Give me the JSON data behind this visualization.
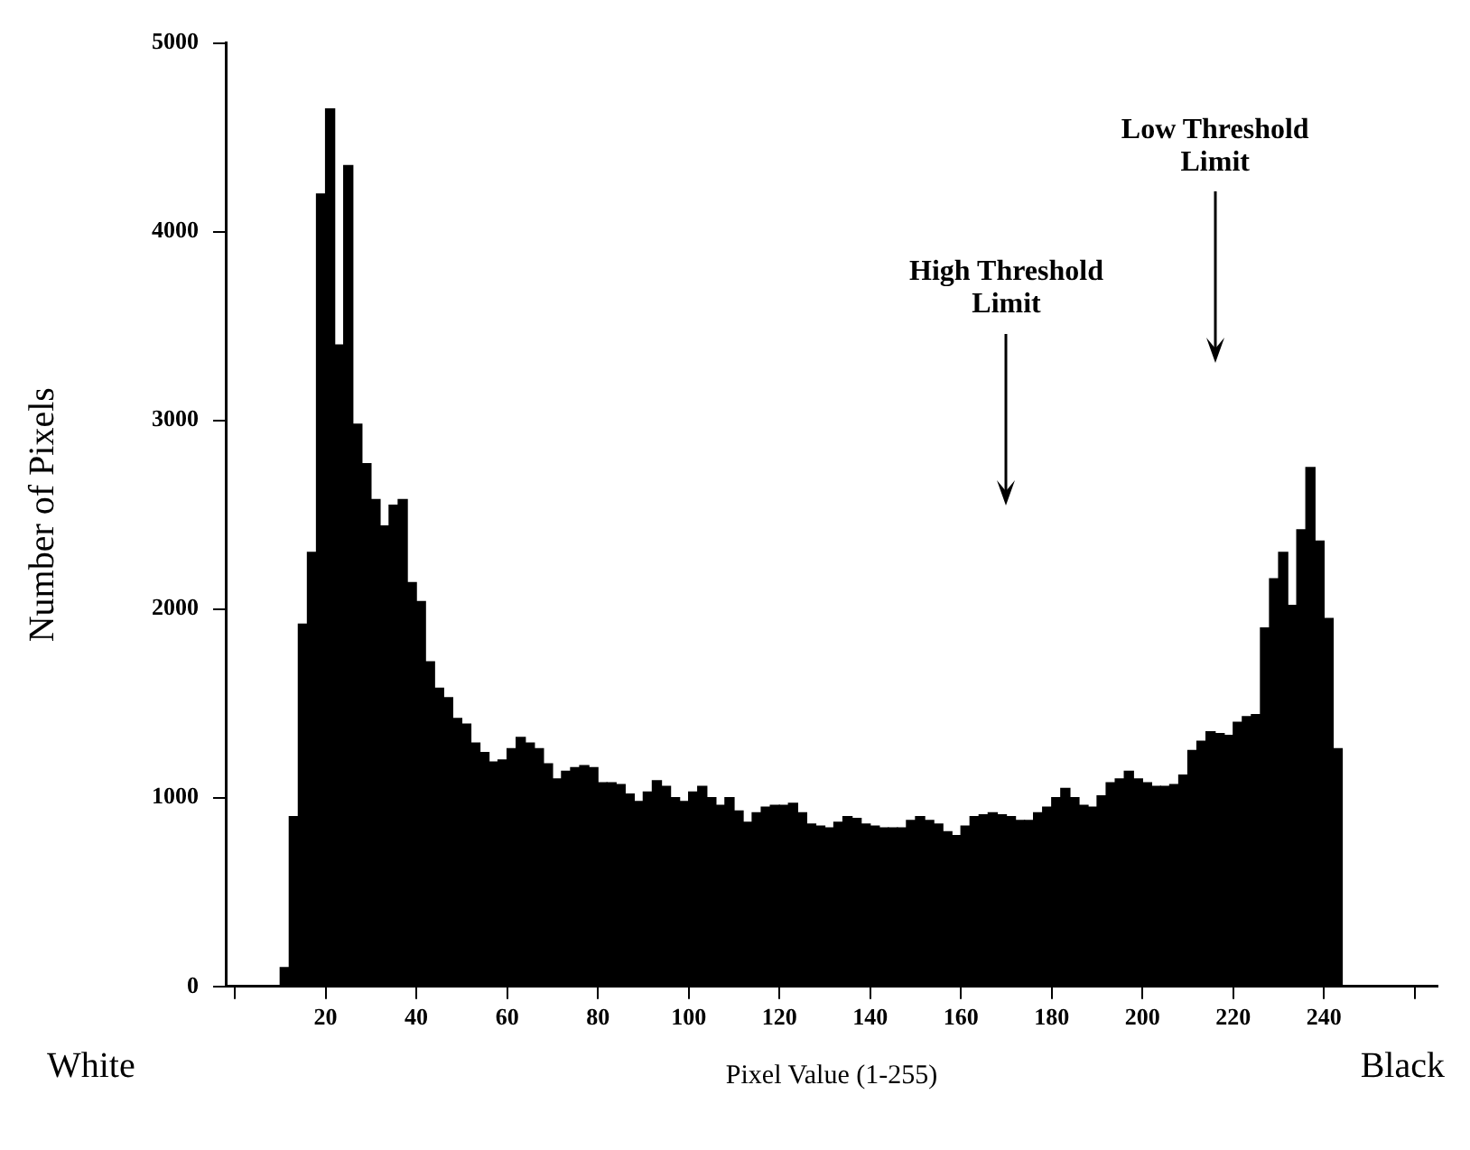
{
  "chart_data": {
    "type": "histogram",
    "xlabel": "Pixel Value (1-255)",
    "ylabel": "Number of Pixels",
    "bins": [
      10,
      12,
      14,
      16,
      18,
      20,
      22,
      24,
      26,
      28,
      30,
      32,
      34,
      36,
      38,
      40,
      42,
      44,
      46,
      48,
      50,
      52,
      54,
      56,
      58,
      60,
      62,
      64,
      66,
      68,
      70,
      72,
      74,
      76,
      78,
      80,
      82,
      84,
      86,
      88,
      90,
      92,
      94,
      96,
      98,
      100,
      102,
      104,
      106,
      108,
      110,
      112,
      114,
      116,
      118,
      120,
      122,
      124,
      126,
      128,
      130,
      132,
      134,
      136,
      138,
      140,
      142,
      144,
      146,
      148,
      150,
      152,
      154,
      156,
      158,
      160,
      162,
      164,
      166,
      168,
      170,
      172,
      174,
      176,
      178,
      180,
      182,
      184,
      186,
      188,
      190,
      192,
      194,
      196,
      198,
      200,
      202,
      204,
      206,
      208,
      210,
      212,
      214,
      216,
      218,
      220,
      222,
      224,
      226,
      228,
      230,
      232,
      234,
      236,
      238,
      240,
      242,
      244
    ],
    "values": [
      100,
      900,
      1920,
      2300,
      4200,
      4650,
      3400,
      4350,
      2980,
      2770,
      2580,
      2440,
      2550,
      2580,
      2140,
      2040,
      1720,
      1580,
      1530,
      1420,
      1390,
      1290,
      1240,
      1190,
      1200,
      1260,
      1320,
      1290,
      1260,
      1180,
      1100,
      1140,
      1160,
      1170,
      1160,
      1080,
      1080,
      1070,
      1020,
      980,
      1030,
      1090,
      1060,
      1000,
      980,
      1030,
      1060,
      1000,
      960,
      1000,
      930,
      870,
      920,
      950,
      960,
      960,
      970,
      920,
      860,
      850,
      840,
      870,
      900,
      890,
      860,
      850,
      840,
      840,
      840,
      880,
      900,
      880,
      860,
      820,
      800,
      850,
      900,
      910,
      920,
      910,
      900,
      880,
      880,
      920,
      950,
      1000,
      1050,
      1000,
      960,
      950,
      1010,
      1080,
      1100,
      1140,
      1100,
      1080,
      1060,
      1060,
      1070,
      1120,
      1250,
      1300,
      1350,
      1340,
      1330,
      1400,
      1430,
      1440,
      1900,
      2160,
      2300,
      2020,
      2420,
      2750,
      2360,
      1950,
      1260
    ],
    "color": "#000000",
    "xlim": [
      -2,
      265
    ],
    "xticks": [
      {
        "value": 0,
        "label": null
      },
      20,
      40,
      60,
      80,
      100,
      120,
      140,
      160,
      180,
      200,
      220,
      240,
      {
        "value": 260,
        "label": null
      }
    ],
    "ylim": [
      0,
      5000
    ],
    "yticks": [
      0,
      1000,
      2000,
      3000,
      4000,
      5000
    ],
    "grid": false,
    "legend": false,
    "ref_lines": [
      {
        "axis": "x",
        "value": 170,
        "label": "High Threshold\nLimit"
      },
      {
        "axis": "x",
        "value": 216,
        "label": "Low Threshold\nLimit"
      }
    ],
    "annotations": [
      "White",
      "Black"
    ]
  }
}
